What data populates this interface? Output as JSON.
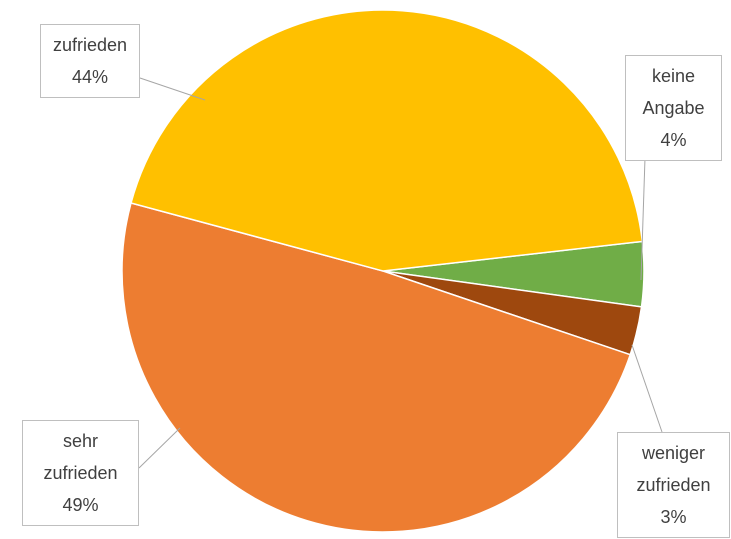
{
  "chart_data": {
    "type": "pie",
    "categories": [
      "keine Angabe",
      "weniger zufrieden",
      "sehr zufrieden",
      "zufrieden"
    ],
    "values": [
      4,
      3,
      49,
      44
    ],
    "value_labels": [
      "4%",
      "3%",
      "49%",
      "44%"
    ],
    "colors": [
      "#70ad47",
      "#9e480e",
      "#ed7d31",
      "#ffc000"
    ]
  }
}
